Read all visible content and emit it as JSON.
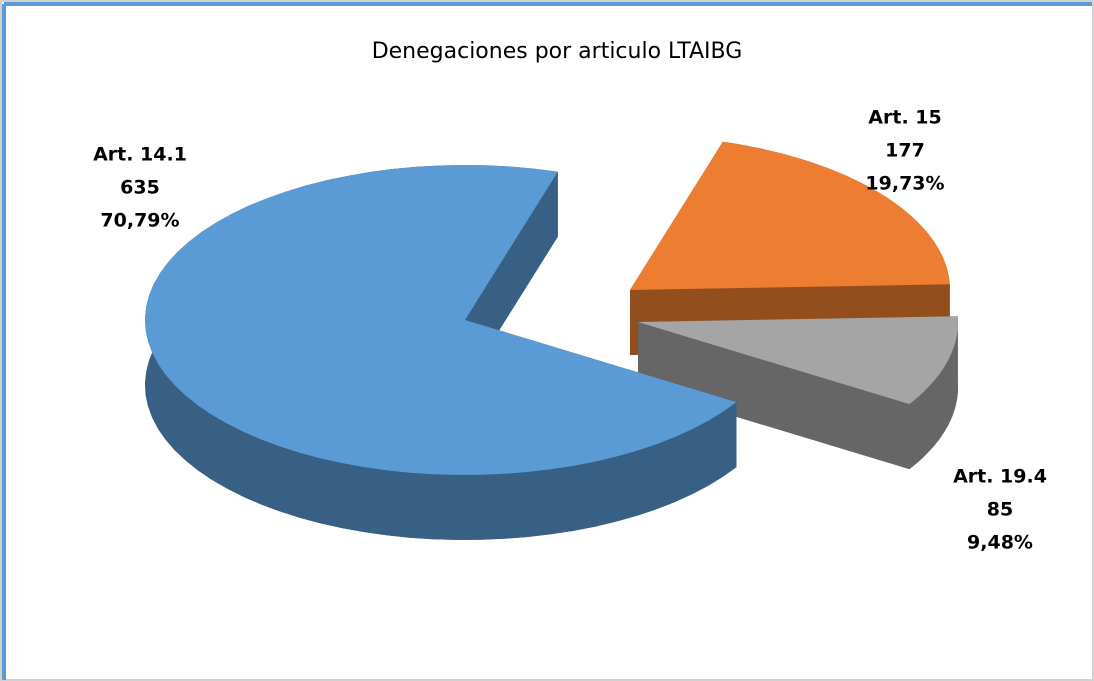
{
  "chart_data": {
    "type": "pie3d",
    "title": "Denegaciones por articulo LTAIBG",
    "categories": [
      "Art. 14.1",
      "Art. 15",
      "Art. 19.4"
    ],
    "values": [
      635,
      177,
      85
    ],
    "value_labels": [
      "635",
      "177",
      "85"
    ],
    "percent_labels": [
      "70,79%",
      "19,73%",
      "9,48%"
    ],
    "colors": [
      "#5b9bd5",
      "#ed7d31",
      "#a5a5a5"
    ]
  }
}
